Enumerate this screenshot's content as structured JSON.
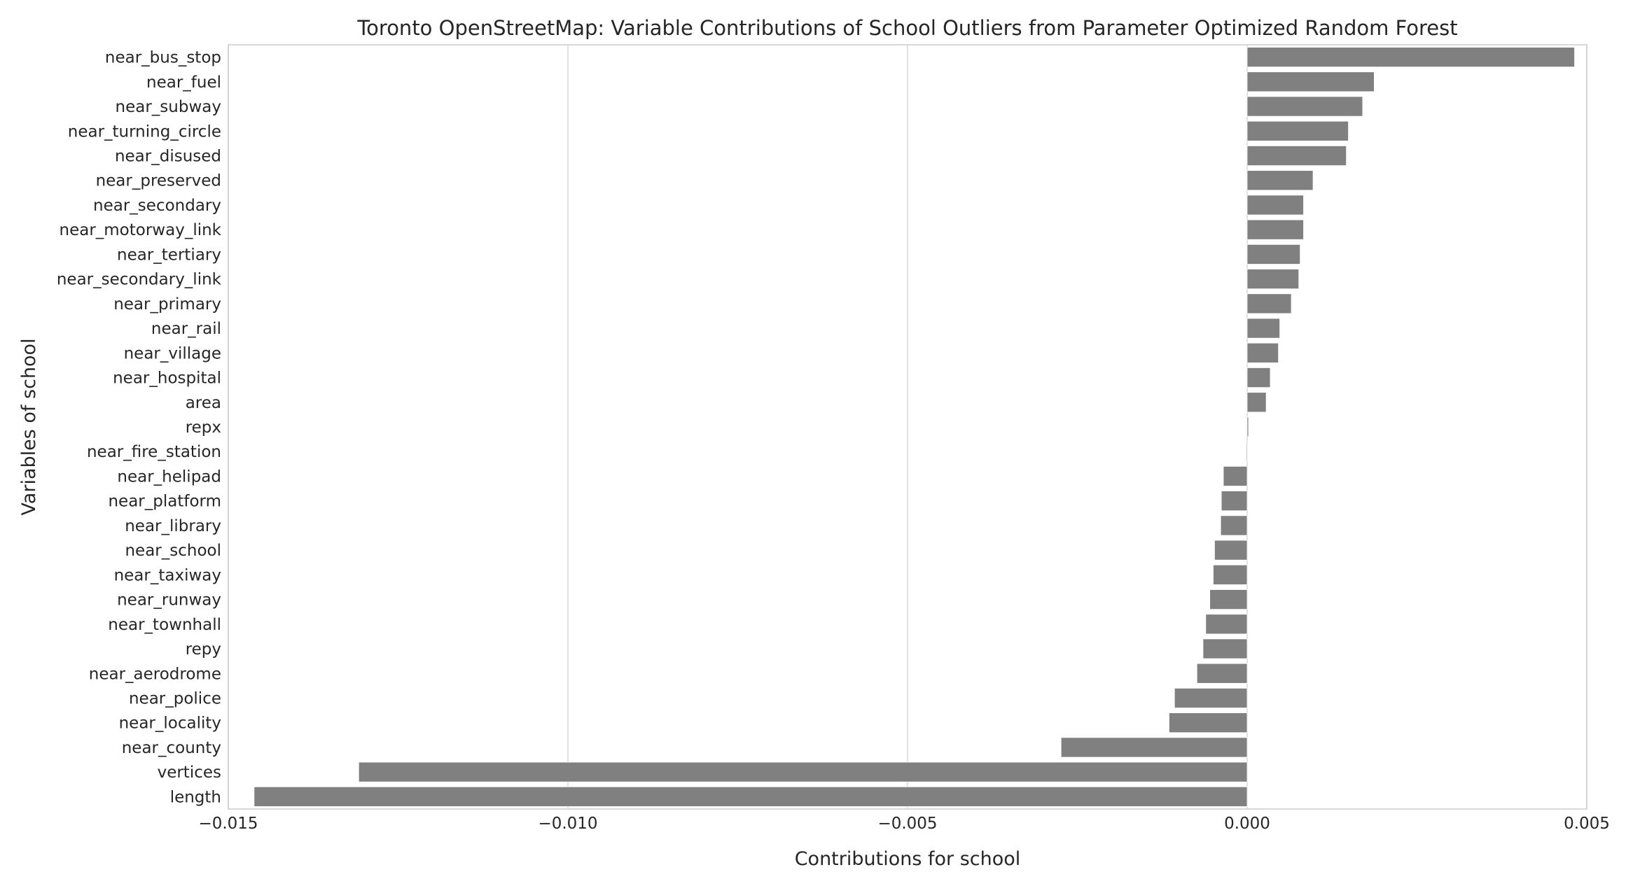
{
  "chart_data": {
    "type": "bar",
    "orientation": "horizontal",
    "title": "Toronto OpenStreetMap: Variable Contributions of School Outliers from Parameter Optimized Random Forest",
    "xlabel": "Contributions for school",
    "ylabel": "Variables of school",
    "xlim": [
      -0.015,
      0.005
    ],
    "xticks": [
      -0.015,
      -0.01,
      -0.005,
      0.0,
      0.005
    ],
    "xtick_labels": [
      "−0.015",
      "−0.010",
      "−0.005",
      "0.000",
      "0.005"
    ],
    "grid": "vertical",
    "bar_color": "#808080",
    "categories": [
      "near_bus_stop",
      "near_fuel",
      "near_subway",
      "near_turning_circle",
      "near_disused",
      "near_preserved",
      "near_secondary",
      "near_motorway_link",
      "near_tertiary",
      "near_secondary_link",
      "near_primary",
      "near_rail",
      "near_village",
      "near_hospital",
      "area",
      "repx",
      "near_fire_station",
      "near_helipad",
      "near_platform",
      "near_library",
      "near_school",
      "near_taxiway",
      "near_runway",
      "near_townhall",
      "repy",
      "near_aerodrome",
      "near_police",
      "near_locality",
      "near_county",
      "vertices",
      "length"
    ],
    "values": [
      0.00482,
      0.00187,
      0.0017,
      0.00149,
      0.00146,
      0.00097,
      0.00083,
      0.00083,
      0.00078,
      0.00076,
      0.00065,
      0.00048,
      0.00046,
      0.00034,
      0.00028,
      2e-05,
      -1e-05,
      -0.00035,
      -0.00038,
      -0.00039,
      -0.00048,
      -0.0005,
      -0.00055,
      -0.00061,
      -0.00065,
      -0.00074,
      -0.00107,
      -0.00115,
      -0.00274,
      -0.01308,
      -0.01462
    ]
  }
}
